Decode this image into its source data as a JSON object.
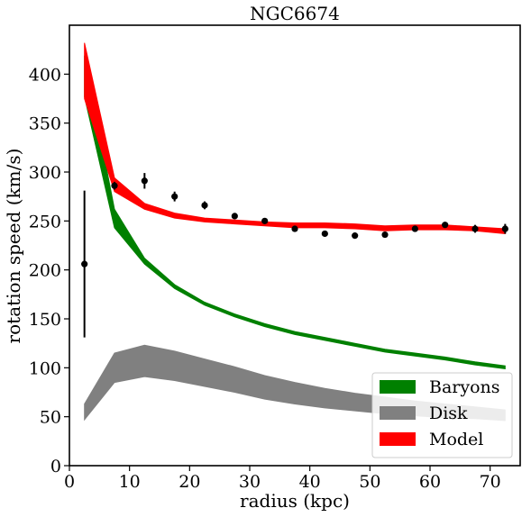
{
  "chart_data": {
    "type": "line",
    "title": "NGC6674",
    "xlabel": "radius (kpc)",
    "ylabel": "rotation speed (km/s)",
    "xlim": [
      0,
      75
    ],
    "ylim": [
      0,
      450
    ],
    "xticks": [
      0,
      10,
      20,
      30,
      40,
      50,
      60,
      70
    ],
    "yticks": [
      0,
      50,
      100,
      150,
      200,
      250,
      300,
      350,
      400
    ],
    "grid": false,
    "legend_position": "lower-right",
    "series": [
      {
        "name": "Baryons",
        "kind": "band",
        "color": "#008000",
        "x": [
          2.5,
          7.5,
          12.5,
          17.5,
          22.5,
          27.5,
          32.5,
          37.5,
          42.5,
          47.5,
          52.5,
          57.5,
          62.5,
          67.5,
          72.5
        ],
        "lower": [
          377,
          243,
          206,
          181,
          164,
          152,
          142,
          134,
          128,
          122,
          116,
          112,
          108,
          103,
          99
        ],
        "upper": [
          419,
          262,
          212,
          185,
          167,
          155,
          145,
          137,
          131,
          125,
          119,
          115,
          111,
          106,
          102
        ]
      },
      {
        "name": "Disk",
        "kind": "band",
        "color": "#808080",
        "x": [
          2.5,
          7.5,
          12.5,
          17.5,
          22.5,
          27.5,
          32.5,
          37.5,
          42.5,
          47.5,
          52.5,
          57.5,
          62.5,
          67.5,
          72.5
        ],
        "lower": [
          47,
          85,
          91,
          87,
          81,
          75,
          68,
          63,
          59,
          56,
          53,
          51,
          49,
          48,
          46
        ],
        "upper": [
          63,
          115,
          123,
          117,
          109,
          101,
          92,
          85,
          79,
          74,
          70,
          66,
          63,
          60,
          57
        ]
      },
      {
        "name": "Model",
        "kind": "band",
        "color": "#ff0000",
        "x": [
          2.5,
          7.5,
          12.5,
          17.5,
          22.5,
          27.5,
          32.5,
          37.5,
          42.5,
          47.5,
          52.5,
          57.5,
          62.5,
          67.5,
          72.5
        ],
        "lower": [
          375,
          280,
          262,
          253,
          249,
          247,
          245,
          243,
          243,
          242,
          240,
          241,
          241,
          240,
          237
        ],
        "upper": [
          432,
          294,
          268,
          258,
          253,
          251,
          249,
          248,
          248,
          247,
          245,
          246,
          246,
          244,
          242
        ]
      }
    ],
    "observations": {
      "color": "#000000",
      "x": [
        2.5,
        7.5,
        12.5,
        17.5,
        22.5,
        27.5,
        32.5,
        37.5,
        42.5,
        47.5,
        52.5,
        57.5,
        62.5,
        67.5,
        72.5
      ],
      "y": [
        206,
        286,
        291,
        275,
        266,
        255,
        250,
        242,
        237,
        235,
        236,
        242,
        246,
        242,
        242
      ],
      "err": [
        75,
        4,
        8,
        5,
        4,
        3,
        3,
        3,
        3,
        3,
        3,
        3,
        3,
        4,
        5
      ]
    }
  }
}
